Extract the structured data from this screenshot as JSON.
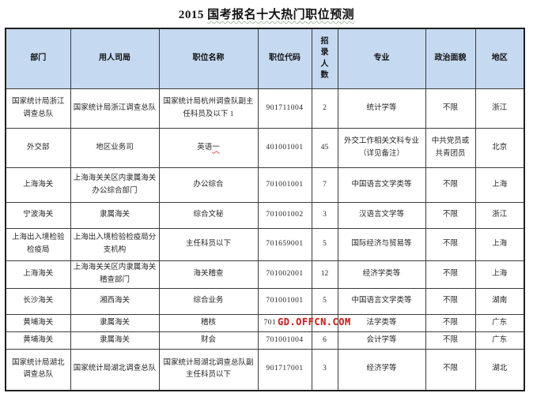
{
  "title": {
    "prefix": "2015",
    "main": "国考报名十大热门职位预测"
  },
  "watermark": {
    "text": "GD.OFFCN.COM",
    "color": "#c7231f"
  },
  "table": {
    "header_bg": "#c5d9f1",
    "headers": [
      "部门",
      "用人司局",
      "职位名称",
      "职位代码",
      "招录人数",
      "专业",
      "政治面貌",
      "地区"
    ],
    "rows": [
      {
        "department": "国家统计局浙江调查总队",
        "bureau": "国家统计局浙江调查总队",
        "position": "国家统计局杭州调查队副主任科员及以下 1",
        "code": "901711004",
        "count": "2",
        "major": "统计学等",
        "political": "不限",
        "region": "浙江"
      },
      {
        "department": "外交部",
        "bureau": "地区业务司",
        "position": "英语一",
        "code": "401001001",
        "count": "45",
        "major": "外交工作相关文科专业（详见备注）",
        "political": "中共党员或共青团员",
        "region": "北京"
      },
      {
        "department": "上海海关",
        "bureau": "上海海关关区内隶属海关办公综合部门",
        "position": "办公综合",
        "code": "701001001",
        "count": "7",
        "major": "中国语言文学类等",
        "political": "不限",
        "region": "上海"
      },
      {
        "department": "宁波海关",
        "bureau": "隶属海关",
        "position": "综合文秘",
        "code": "701001002",
        "count": "3",
        "major": "汉语言文学等",
        "political": "不限",
        "region": "浙江"
      },
      {
        "department": "上海出入境检验检疫局",
        "bureau": "上海出入境检验检疫局分支机构",
        "position": "主任科员以下",
        "code": "701659001",
        "count": "5",
        "major": "国际经济与贸易等",
        "political": "不限",
        "region": "上海"
      },
      {
        "department": "上海海关",
        "bureau": "上海海关关区内隶属海关稽查部门",
        "position": "海关稽查",
        "code": "701002001",
        "count": "12",
        "major": "经济学类等",
        "political": "不限",
        "region": "上海"
      },
      {
        "department": "长沙海关",
        "bureau": "湘西海关",
        "position": "综合业务",
        "code": "701001001",
        "count": "5",
        "major": "中国语言文学类等",
        "political": "不限",
        "region": "湖南"
      },
      {
        "department": "黄埔海关",
        "bureau": "隶属海关",
        "position": "稽核",
        "code": "701",
        "count": "",
        "major": "法学类等",
        "political": "不限",
        "region": "广东"
      },
      {
        "department": "黄埔海关",
        "bureau": "隶属海关",
        "position": "财会",
        "code": "701001004",
        "count": "6",
        "major": "会计学等",
        "political": "不限",
        "region": "广东"
      },
      {
        "department": "国家统计局湖北调查总队",
        "bureau": "国家统计局湖北调查总队",
        "position": "国家统计局湖北调查总队副主任科员以下",
        "code": "901717001",
        "count": "3",
        "major": "经济学等",
        "political": "不限",
        "region": "湖北"
      }
    ]
  }
}
